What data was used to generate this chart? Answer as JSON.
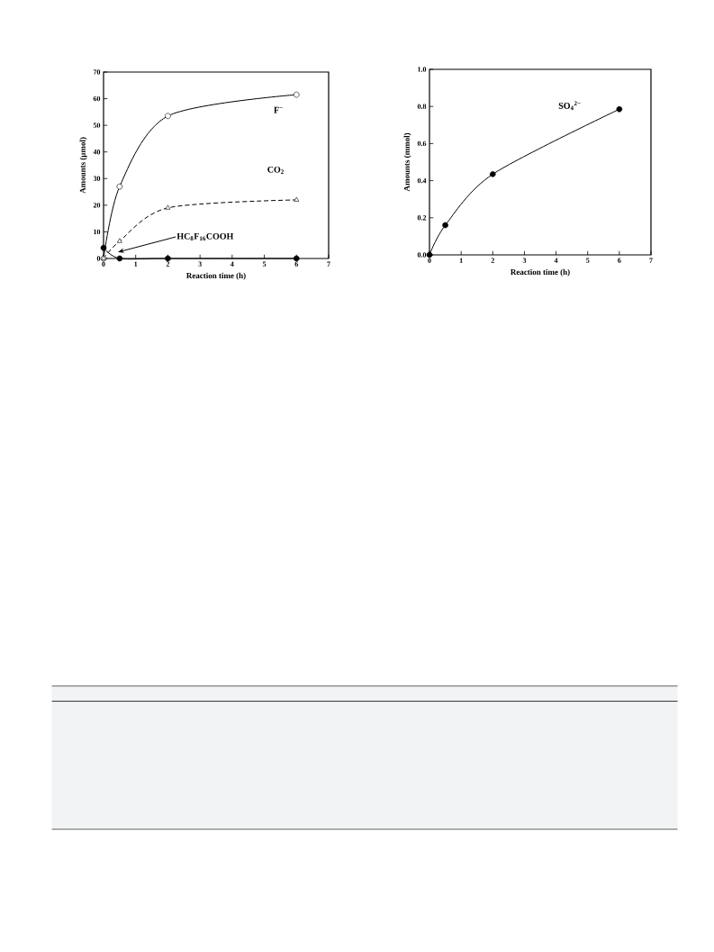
{
  "chart_data": [
    {
      "type": "line",
      "xlabel": "Reaction time (h)",
      "ylabel": "Amounts (µmol)",
      "xlim": [
        0,
        7
      ],
      "ylim": [
        0,
        70
      ],
      "xticks": [
        0,
        1,
        2,
        3,
        4,
        5,
        6,
        7
      ],
      "yticks": [
        0,
        10,
        20,
        30,
        40,
        50,
        60,
        70
      ],
      "x": [
        0,
        0.5,
        2,
        6
      ],
      "series": [
        {
          "name": "F$^{−}$",
          "color": "#ffffff",
          "marker": "circle",
          "line_style": "solid",
          "values": [
            0,
            27,
            53.5,
            61.5
          ]
        },
        {
          "name": "CO$_{2}$",
          "color": "#ffffff",
          "marker": "triangle",
          "line_style": "dashed",
          "values": [
            0,
            6.5,
            19,
            22
          ]
        },
        {
          "name": "HC$_{8}$F$_{16}$COOH",
          "color": "#000000",
          "marker": "circle",
          "line_style": "solid",
          "values": [
            4,
            0,
            0,
            0
          ]
        }
      ]
    },
    {
      "type": "line",
      "xlabel": "Reaction time (h)",
      "ylabel": "Amounts (mmol)",
      "xlim": [
        0,
        7
      ],
      "ylim": [
        0,
        1.0
      ],
      "xticks": [
        0,
        1,
        2,
        3,
        4,
        5,
        6,
        7
      ],
      "yticks": [
        {
          "value": 0,
          "label": "0.0"
        },
        {
          "value": 0.2,
          "label": "0.2"
        },
        {
          "value": 0.4,
          "label": "0.4"
        },
        {
          "value": 0.6,
          "label": "0.6"
        },
        {
          "value": 0.8,
          "label": "0.8"
        },
        {
          "value": 1.0,
          "label": "1.0"
        }
      ],
      "x": [
        0,
        0.5,
        2,
        6
      ],
      "series": [
        {
          "name": "SO$_{4}$$^{2−}$",
          "color": "#000000",
          "marker": "circle",
          "line_style": "solid",
          "values": [
            0,
            0.16,
            0.435,
            0.785
          ]
        }
      ]
    }
  ]
}
